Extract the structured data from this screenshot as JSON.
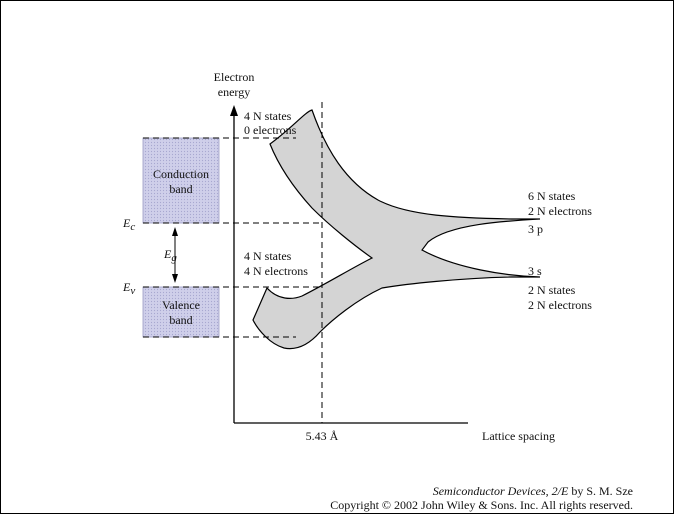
{
  "colors": {
    "band_fill": "#c9c9e6",
    "band_stroke": "#8b8bb8",
    "region_fill": "#d4d4d4",
    "line": "#000000"
  },
  "axes": {
    "y_label_line1": "Electron",
    "y_label_line2": "energy",
    "x_label": "Lattice spacing",
    "x_marker": "5.43 Å"
  },
  "levels": {
    "ec_main": "E",
    "ec_sub": "c",
    "ev_main": "E",
    "ev_sub": "v",
    "eg_main": "E",
    "eg_sub": "g"
  },
  "bands": {
    "conduction_line1": "Conduction",
    "conduction_line2": "band",
    "valence_line1": "Valence",
    "valence_line2": "band"
  },
  "annotations": {
    "top_states": "4 N states",
    "top_electrons": "0   electrons",
    "mid_states": "4 N states",
    "mid_electrons": "4 N electrons",
    "right_upper_states": "6 N states",
    "right_upper_electrons": "2 N electrons",
    "right_upper_orbital": "3 p",
    "right_lower_orbital": "3 s",
    "right_lower_states": "2 N states",
    "right_lower_electrons": "2 N electrons"
  },
  "credit": {
    "book_title": "Semiconductor Devices, 2/E",
    "author": " by S. M. Sze",
    "copyright": "Copyright © 2002 John Wiley & Sons. Inc. All rights reserved."
  }
}
